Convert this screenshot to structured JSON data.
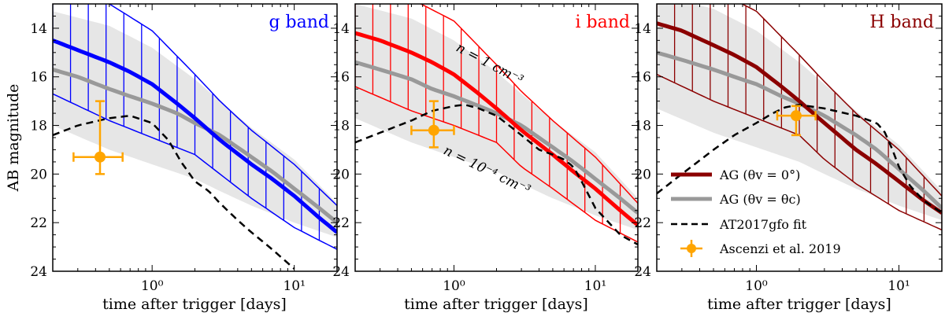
{
  "figure": {
    "ylabel": "AB magnitude",
    "xlabel": "time after trigger [days]"
  },
  "legend": {
    "ag_on": "AG (θv = 0°)",
    "ag_off": "AG (θv = θc)",
    "kn": "AT2017gfo fit",
    "obs": "Ascenzi et al. 2019"
  },
  "annotations": {
    "n_high": "n = 1 cm⁻³",
    "n_low": "n = 10⁻⁴ cm⁻³"
  },
  "colors": {
    "g": "#0000ff",
    "i": "#ff0000",
    "H": "#8b0000",
    "offaxis": "#999999",
    "offaxis_band": "#e6e6e6",
    "kilonova": "#000000",
    "observation": "#ffa500"
  },
  "chart_data": [
    {
      "type": "line",
      "panel": "g",
      "band_label": "g band",
      "xscale": "log",
      "xlim": [
        0.2,
        20
      ],
      "ylim": [
        24,
        13
      ],
      "xticks": [
        {
          "v": 1,
          "label": "10⁰"
        },
        {
          "v": 10,
          "label": "10¹"
        }
      ],
      "yticks": [
        14,
        16,
        18,
        20,
        22,
        24
      ],
      "series": [
        {
          "name": "AG (θv = 0°)",
          "x": [
            0.2,
            0.3,
            0.5,
            0.7,
            1,
            1.5,
            2,
            3,
            5,
            7,
            10,
            15,
            20
          ],
          "y": [
            14.5,
            14.9,
            15.4,
            15.8,
            16.3,
            17.1,
            17.7,
            18.6,
            19.6,
            20.2,
            20.9,
            21.8,
            22.4
          ]
        },
        {
          "name": "AG (θv = 0°) upper",
          "x": [
            0.2,
            0.5,
            1,
            2,
            3,
            5,
            10,
            20
          ],
          "y": [
            12.3,
            13.0,
            14.1,
            15.9,
            17.0,
            18.2,
            19.6,
            21.3
          ]
        },
        {
          "name": "AG (θv = 0°) lower",
          "x": [
            0.2,
            0.5,
            1,
            2,
            3,
            5,
            10,
            20
          ],
          "y": [
            16.7,
            17.8,
            18.5,
            19.2,
            20.0,
            21.0,
            22.2,
            23.1
          ]
        },
        {
          "name": "AG (θv = θc)",
          "x": [
            0.2,
            0.3,
            0.5,
            0.7,
            1,
            1.5,
            2,
            3,
            5,
            7,
            10,
            15,
            20
          ],
          "y": [
            15.7,
            16.0,
            16.5,
            16.8,
            17.1,
            17.5,
            17.9,
            18.4,
            19.3,
            19.9,
            20.6,
            21.4,
            22.0
          ]
        },
        {
          "name": "AG (θv = θc) upper",
          "x": [
            0.2,
            0.5,
            1,
            2,
            3,
            5,
            10,
            20
          ],
          "y": [
            13.3,
            13.9,
            14.8,
            16.1,
            17.0,
            18.1,
            19.4,
            21.2
          ]
        },
        {
          "name": "AG (θv = θc) lower",
          "x": [
            0.2,
            0.5,
            1,
            2,
            3,
            5,
            10,
            20
          ],
          "y": [
            18.0,
            19.0,
            19.6,
            20.2,
            20.7,
            21.3,
            22.0,
            22.6
          ]
        },
        {
          "name": "AT2017gfo fit",
          "x": [
            0.2,
            0.3,
            0.5,
            0.7,
            1,
            1.3,
            1.6,
            2,
            2.5,
            3,
            4,
            5,
            7,
            10
          ],
          "y": [
            18.4,
            18.0,
            17.7,
            17.6,
            17.9,
            18.6,
            19.5,
            20.3,
            20.7,
            21.2,
            21.9,
            22.4,
            23.1,
            23.9
          ]
        }
      ],
      "points": [
        {
          "name": "Ascenzi et al. 2019",
          "x": 0.43,
          "y": 19.3,
          "xerr": [
            0.28,
            0.62
          ],
          "yerr": [
            17.0,
            20.0
          ]
        }
      ]
    },
    {
      "type": "line",
      "panel": "i",
      "band_label": "i band",
      "xscale": "log",
      "xlim": [
        0.2,
        20
      ],
      "ylim": [
        24,
        13
      ],
      "xticks": [
        {
          "v": 1,
          "label": "10⁰"
        },
        {
          "v": 10,
          "label": "10¹"
        }
      ],
      "yticks": [
        14,
        16,
        18,
        20,
        22,
        24
      ],
      "series": [
        {
          "name": "AG (θv = 0°)",
          "x": [
            0.2,
            0.3,
            0.5,
            0.7,
            1,
            1.5,
            2,
            3,
            5,
            7,
            10,
            15,
            20
          ],
          "y": [
            14.2,
            14.5,
            15.0,
            15.4,
            15.9,
            16.7,
            17.3,
            18.2,
            19.2,
            19.9,
            20.6,
            21.5,
            22.1
          ]
        },
        {
          "name": "AG (θv = 0°) upper",
          "x": [
            0.2,
            0.5,
            1,
            2,
            3,
            5,
            10,
            20
          ],
          "y": [
            12.2,
            12.8,
            13.7,
            15.5,
            16.6,
            17.8,
            19.3,
            21.2
          ]
        },
        {
          "name": "AG (θv = 0°) lower",
          "x": [
            0.2,
            0.5,
            1,
            2,
            3,
            5,
            10,
            20
          ],
          "y": [
            16.4,
            17.4,
            18.0,
            18.7,
            19.7,
            20.6,
            21.9,
            22.8
          ]
        },
        {
          "name": "AG (θv = θc)",
          "x": [
            0.2,
            0.3,
            0.5,
            0.7,
            1,
            1.5,
            2,
            3,
            5,
            7,
            10,
            15,
            20
          ],
          "y": [
            15.4,
            15.7,
            16.1,
            16.5,
            16.8,
            17.2,
            17.5,
            18.0,
            18.9,
            19.5,
            20.2,
            21.0,
            21.6
          ]
        },
        {
          "name": "AG (θv = θc) upper",
          "x": [
            0.2,
            0.5,
            1,
            2,
            3,
            5,
            10,
            20
          ],
          "y": [
            13.0,
            13.6,
            14.5,
            15.8,
            16.7,
            17.8,
            19.1,
            21.0
          ]
        },
        {
          "name": "AG (θv = θc) lower",
          "x": [
            0.2,
            0.5,
            1,
            2,
            3,
            5,
            10,
            20
          ],
          "y": [
            17.7,
            18.7,
            19.3,
            19.9,
            20.4,
            21.0,
            21.7,
            22.3
          ]
        },
        {
          "name": "AT2017gfo fit",
          "x": [
            0.2,
            0.3,
            0.5,
            0.7,
            1,
            1.2,
            1.5,
            2,
            3,
            4,
            5,
            6,
            7,
            8,
            10,
            15,
            20
          ],
          "y": [
            18.7,
            18.3,
            17.8,
            17.4,
            17.2,
            17.15,
            17.3,
            17.6,
            18.4,
            19.0,
            19.2,
            19.4,
            19.7,
            20.3,
            21.4,
            22.5,
            22.9
          ]
        }
      ],
      "points": [
        {
          "name": "Ascenzi et al. 2019",
          "x": 0.72,
          "y": 18.2,
          "xerr": [
            0.5,
            1.0
          ],
          "yerr": [
            17.0,
            18.9
          ]
        }
      ]
    },
    {
      "type": "line",
      "panel": "H",
      "band_label": "H band",
      "xscale": "log",
      "xlim": [
        0.2,
        20
      ],
      "ylim": [
        24,
        13
      ],
      "xticks": [
        {
          "v": 1,
          "label": "10⁰"
        },
        {
          "v": 10,
          "label": "10¹"
        }
      ],
      "yticks": [
        14,
        16,
        18,
        20,
        22,
        24
      ],
      "series": [
        {
          "name": "AG (θv = 0°)",
          "x": [
            0.2,
            0.3,
            0.5,
            0.7,
            1,
            1.5,
            2,
            3,
            5,
            7,
            10,
            15,
            20
          ],
          "y": [
            13.8,
            14.1,
            14.7,
            15.1,
            15.6,
            16.4,
            17.0,
            17.9,
            19.0,
            19.6,
            20.3,
            21.1,
            21.6
          ]
        },
        {
          "name": "AG (θv = 0°) upper",
          "x": [
            0.2,
            0.5,
            1,
            2,
            3,
            5,
            10,
            20
          ],
          "y": [
            11.8,
            12.4,
            13.3,
            15.1,
            16.2,
            17.5,
            19.0,
            20.9
          ]
        },
        {
          "name": "AG (θv = 0°) lower",
          "x": [
            0.2,
            0.5,
            1,
            2,
            3,
            5,
            10,
            20
          ],
          "y": [
            15.9,
            17.0,
            17.7,
            18.4,
            19.4,
            20.4,
            21.5,
            22.3
          ]
        },
        {
          "name": "AG (θv = θc)",
          "x": [
            0.2,
            0.3,
            0.5,
            0.7,
            1,
            1.5,
            2,
            3,
            5,
            7,
            10,
            15,
            20
          ],
          "y": [
            15.0,
            15.3,
            15.7,
            16.0,
            16.3,
            16.8,
            17.1,
            17.6,
            18.4,
            19.0,
            19.8,
            20.7,
            21.4
          ]
        },
        {
          "name": "AG (θv = θc) upper",
          "x": [
            0.2,
            0.5,
            1,
            2,
            3,
            5,
            10,
            20
          ],
          "y": [
            12.6,
            13.2,
            14.1,
            15.4,
            16.3,
            17.4,
            18.8,
            20.7
          ]
        },
        {
          "name": "AG (θv = θc) lower",
          "x": [
            0.2,
            0.5,
            1,
            2,
            3,
            5,
            10,
            20
          ],
          "y": [
            17.3,
            18.3,
            18.9,
            19.5,
            20.0,
            20.6,
            21.3,
            21.9
          ]
        },
        {
          "name": "AT2017gfo fit",
          "x": [
            0.2,
            0.3,
            0.5,
            0.7,
            1,
            1.3,
            1.6,
            2,
            3,
            5,
            7,
            8,
            9,
            10,
            12,
            15,
            20
          ],
          "y": [
            20.8,
            20.0,
            19.0,
            18.4,
            17.9,
            17.5,
            17.25,
            17.15,
            17.3,
            17.6,
            17.9,
            18.3,
            19.0,
            19.7,
            20.5,
            21.1,
            21.6
          ]
        }
      ],
      "points": [
        {
          "name": "Ascenzi et al. 2019",
          "x": 1.9,
          "y": 17.6,
          "xerr": [
            1.4,
            2.6
          ],
          "yerr": [
            17.2,
            18.4
          ]
        }
      ]
    }
  ]
}
